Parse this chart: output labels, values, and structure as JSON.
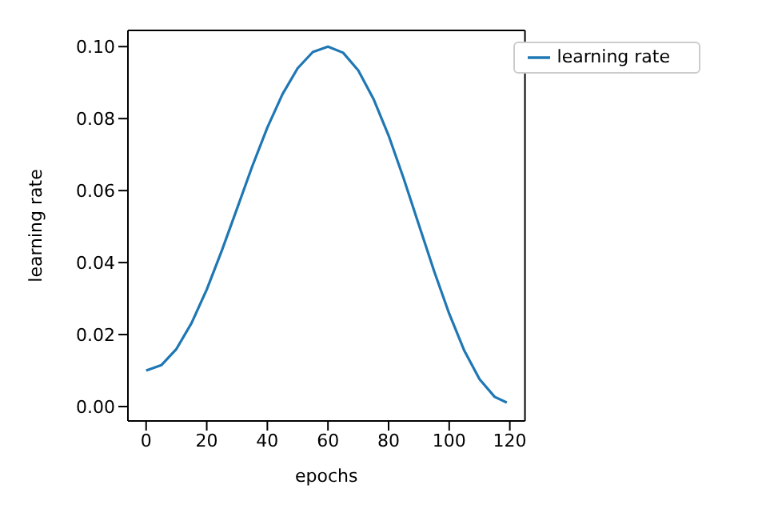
{
  "chart_data": {
    "type": "line",
    "xlabel": "epochs",
    "ylabel": "learning rate",
    "x": [
      0,
      5,
      10,
      15,
      20,
      25,
      30,
      35,
      40,
      45,
      50,
      55,
      60,
      65,
      70,
      75,
      80,
      85,
      90,
      95,
      100,
      105,
      110,
      115,
      119
    ],
    "series": [
      {
        "name": "learning rate",
        "color": "#1f77b4",
        "values": [
          0.01,
          0.0115,
          0.016,
          0.0232,
          0.0325,
          0.0434,
          0.055,
          0.0667,
          0.0775,
          0.0868,
          0.094,
          0.0985,
          0.1,
          0.0983,
          0.0934,
          0.0855,
          0.0753,
          0.0633,
          0.0505,
          0.0377,
          0.0258,
          0.0155,
          0.0076,
          0.0027,
          0.0011
        ]
      }
    ],
    "xlim": [
      -6,
      125
    ],
    "xticks": [
      0,
      20,
      40,
      60,
      80,
      100,
      120
    ],
    "ylim": [
      -0.004,
      0.1045
    ],
    "yticks": [
      {
        "value": 0,
        "label": "0.00"
      },
      {
        "value": 0.02,
        "label": "0.02"
      },
      {
        "value": 0.04,
        "label": "0.04"
      },
      {
        "value": 0.06,
        "label": "0.06"
      },
      {
        "value": 0.08,
        "label": "0.08"
      },
      {
        "value": 0.1,
        "label": "0.10"
      }
    ],
    "legend": "top right",
    "marker": "none",
    "line_style": "solid"
  }
}
